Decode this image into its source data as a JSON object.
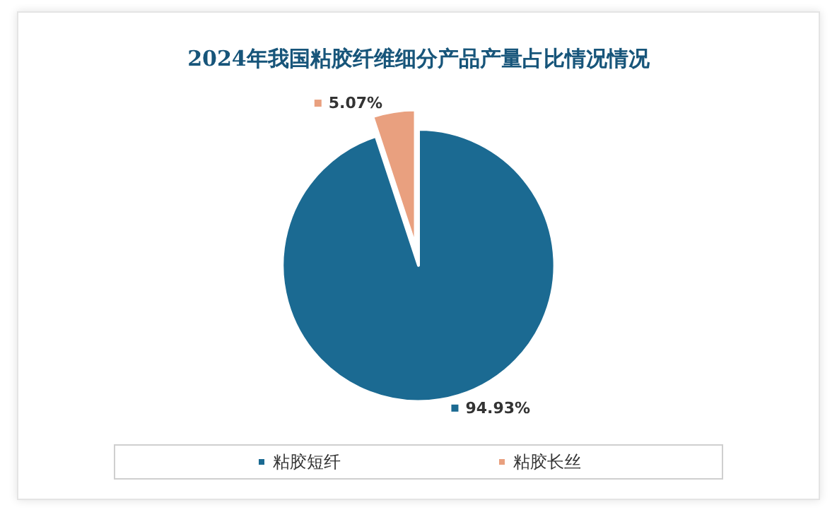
{
  "chart_data": {
    "type": "pie",
    "title": "2024年我国粘胶纤维细分产品产量占比情况情况",
    "categories": [
      "粘胶短纤",
      "粘胶长丝"
    ],
    "values": [
      94.93,
      5.07
    ],
    "colors": [
      "#1b6a92",
      "#e9a07f"
    ],
    "value_labels": [
      "94.93%",
      "5.07%"
    ],
    "legend": "bottom"
  }
}
